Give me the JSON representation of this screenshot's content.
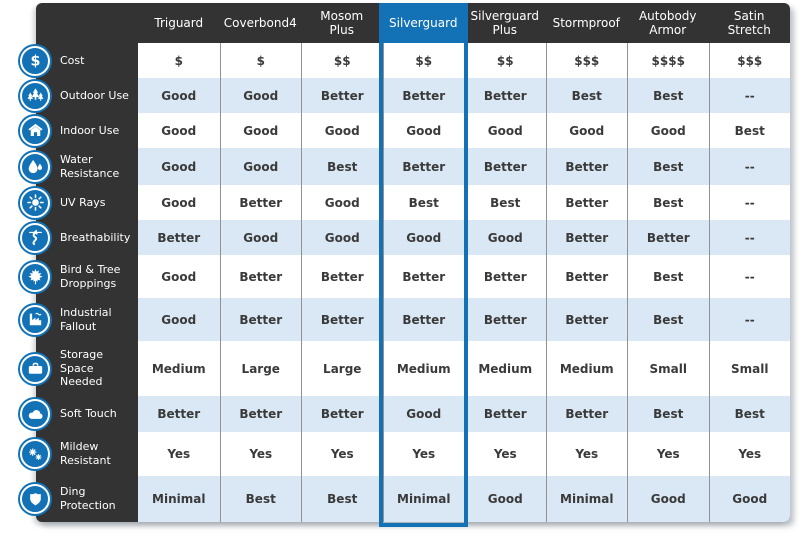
{
  "chart_data": {
    "type": "table",
    "highlighted_column": "Silverguard",
    "columns": [
      {
        "label": "Triguard",
        "highlighted": false
      },
      {
        "label": "Coverbond4",
        "highlighted": false
      },
      {
        "label": "Mosom\nPlus",
        "highlighted": false
      },
      {
        "label": "Silverguard",
        "highlighted": true
      },
      {
        "label": "Silverguard\nPlus",
        "highlighted": false
      },
      {
        "label": "Stormproof",
        "highlighted": false
      },
      {
        "label": "Autobody\nArmor",
        "highlighted": false
      },
      {
        "label": "Satin\nStretch",
        "highlighted": false
      }
    ],
    "rows": [
      {
        "label": "Cost",
        "icon": "dollar-icon",
        "values": [
          "$",
          "$",
          "$$",
          "$$",
          "$$",
          "$$$",
          "$$$$",
          "$$$"
        ]
      },
      {
        "label": "Outdoor Use",
        "icon": "trees-icon",
        "values": [
          "Good",
          "Good",
          "Better",
          "Better",
          "Better",
          "Best",
          "Best",
          "--"
        ]
      },
      {
        "label": "Indoor Use",
        "icon": "house-icon",
        "values": [
          "Good",
          "Good",
          "Good",
          "Good",
          "Good",
          "Good",
          "Good",
          "Best"
        ]
      },
      {
        "label": "Water\nResistance",
        "icon": "water-drops-icon",
        "values": [
          "Good",
          "Good",
          "Best",
          "Better",
          "Better",
          "Better",
          "Best",
          "--"
        ]
      },
      {
        "label": "UV Rays",
        "icon": "sun-icon",
        "values": [
          "Good",
          "Better",
          "Good",
          "Best",
          "Best",
          "Better",
          "Best",
          "--"
        ]
      },
      {
        "label": "Breathability",
        "icon": "airflow-icon",
        "values": [
          "Better",
          "Good",
          "Good",
          "Good",
          "Good",
          "Better",
          "Better",
          "--"
        ]
      },
      {
        "label": "Bird & Tree\nDroppings",
        "icon": "maple-leaf-icon",
        "values": [
          "Good",
          "Better",
          "Better",
          "Better",
          "Better",
          "Better",
          "Best",
          "--"
        ]
      },
      {
        "label": "Industrial\nFallout",
        "icon": "factory-icon",
        "values": [
          "Good",
          "Better",
          "Better",
          "Better",
          "Better",
          "Better",
          "Best",
          "--"
        ]
      },
      {
        "label": "Storage\nSpace\nNeeded",
        "icon": "suitcase-icon",
        "values": [
          "Medium",
          "Large",
          "Large",
          "Medium",
          "Medium",
          "Medium",
          "Small",
          "Small"
        ]
      },
      {
        "label": "Soft Touch",
        "icon": "cloud-icon",
        "values": [
          "Better",
          "Better",
          "Better",
          "Good",
          "Better",
          "Better",
          "Best",
          "Best"
        ]
      },
      {
        "label": "Mildew\nResistant",
        "icon": "spores-icon",
        "values": [
          "Yes",
          "Yes",
          "Yes",
          "Yes",
          "Yes",
          "Yes",
          "Yes",
          "Yes"
        ]
      },
      {
        "label": "Ding\nProtection",
        "icon": "shield-icon",
        "values": [
          "Minimal",
          "Best",
          "Best",
          "Minimal",
          "Good",
          "Minimal",
          "Good",
          "Good"
        ]
      }
    ]
  },
  "colors": {
    "accent_blue": "#1372b6",
    "dark_panel": "#333333",
    "shaded_row": "#d9e8f4",
    "cell_text": "#3a3a3a",
    "separator": "#919191",
    "background": "#ffffff"
  }
}
